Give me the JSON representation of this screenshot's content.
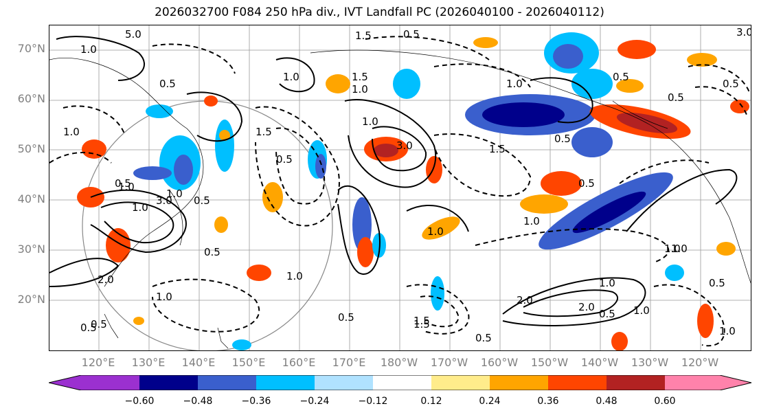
{
  "title": "2026032700 F084 250 hPa div., IVT Landfall PC (2026040100 - 2026040112)",
  "lat_labels": [
    "70°N",
    "60°N",
    "50°N",
    "40°N",
    "30°N",
    "20°N"
  ],
  "lon_labels": [
    "120°E",
    "130°E",
    "140°E",
    "150°E",
    "160°E",
    "170°E",
    "180°W",
    "170°W",
    "160°W",
    "150°W",
    "140°W",
    "130°W",
    "120°W"
  ],
  "colorbar": {
    "colors": [
      "#9b30d0",
      "#00008b",
      "#3a5fcd",
      "#00bfff",
      "#b0e2ff",
      "#ffffff",
      "#ffec8b",
      "#ffa500",
      "#ff4500",
      "#b22222",
      "#ff82ab"
    ],
    "ticks": [
      "−0.60",
      "−0.48",
      "−0.36",
      "−0.24",
      "−0.12",
      "0.12",
      "0.24",
      "0.36",
      "0.48",
      "0.60"
    ]
  },
  "contour_labels": [
    "5.0",
    "1.0",
    "1.5",
    "0.5",
    "1.0",
    "0.5",
    "1.0",
    "3.0",
    "1.0",
    "0.5",
    "1.0",
    "0.5",
    "1.5",
    "0.5",
    "1.0",
    "3.0",
    "0.5",
    "1.0",
    "1.5",
    "0.5",
    "2.0",
    "1.0",
    "2.0",
    "0.5",
    "1.5",
    "0.5",
    "1.0",
    "1.0",
    "0.5",
    "1.0",
    "0.5",
    "3.0",
    "1.0",
    "1.5",
    "0.5",
    "0.5",
    "1.0",
    "1.0",
    "0.5",
    "1.5",
    "2.0",
    "1.0",
    "0.5",
    "1.0",
    "0.5",
    "1.0",
    "0.5",
    "1.0"
  ],
  "map_features": [
    "coastlines",
    "graticule",
    "orthographic-circle"
  ]
}
